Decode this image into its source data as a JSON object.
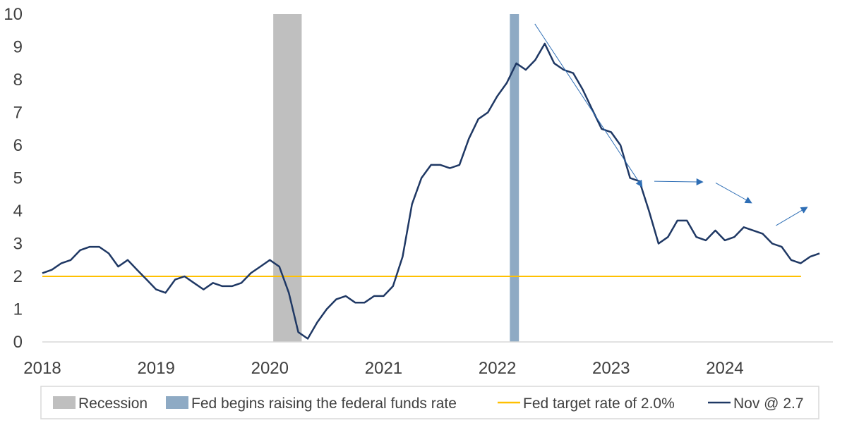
{
  "chart_data": {
    "type": "line",
    "title": "",
    "xlabel": "",
    "ylabel": "",
    "ylim": [
      0,
      10
    ],
    "yticks": [
      0,
      1,
      2,
      3,
      4,
      5,
      6,
      7,
      8,
      9,
      10
    ],
    "xlim": [
      2018.0,
      2024.95
    ],
    "xticks": [
      "2018",
      "2019",
      "2020",
      "2021",
      "2022",
      "2023",
      "2024"
    ],
    "grid": false,
    "legend_position": "bottom",
    "colors": {
      "line": "#1f3864",
      "target": "#ffc000",
      "recession": "#bfbfbf",
      "fed": "#8eaac4",
      "arrow": "#2e6eb5",
      "axis": "#d9d9d9",
      "text": "#404040"
    },
    "recession_band": {
      "x_start": 2020.03,
      "x_end": 2020.28
    },
    "fed_band": {
      "x_start": 2022.11,
      "x_end": 2022.19
    },
    "target_rate": {
      "value": 2.0,
      "x_start": 2018.0,
      "x_end": 2024.67
    },
    "series": [
      {
        "name": "Nov @ 2.7",
        "x": [
          2018.0,
          2018.083,
          2018.167,
          2018.25,
          2018.333,
          2018.417,
          2018.5,
          2018.583,
          2018.667,
          2018.75,
          2018.833,
          2018.917,
          2019.0,
          2019.083,
          2019.167,
          2019.25,
          2019.333,
          2019.417,
          2019.5,
          2019.583,
          2019.667,
          2019.75,
          2019.833,
          2019.917,
          2020.0,
          2020.083,
          2020.167,
          2020.25,
          2020.333,
          2020.417,
          2020.5,
          2020.583,
          2020.667,
          2020.75,
          2020.833,
          2020.917,
          2021.0,
          2021.083,
          2021.167,
          2021.25,
          2021.333,
          2021.417,
          2021.5,
          2021.583,
          2021.667,
          2021.75,
          2021.833,
          2021.917,
          2022.0,
          2022.083,
          2022.167,
          2022.25,
          2022.333,
          2022.417,
          2022.5,
          2022.583,
          2022.667,
          2022.75,
          2022.833,
          2022.917,
          2023.0,
          2023.083,
          2023.167,
          2023.25,
          2023.333,
          2023.417,
          2023.5,
          2023.583,
          2023.667,
          2023.75,
          2023.833,
          2023.917,
          2024.0,
          2024.083,
          2024.167,
          2024.25,
          2024.333,
          2024.417,
          2024.5,
          2024.583,
          2024.667,
          2024.75,
          2024.833
        ],
        "values": [
          2.1,
          2.2,
          2.4,
          2.5,
          2.8,
          2.9,
          2.9,
          2.7,
          2.3,
          2.5,
          2.2,
          1.9,
          1.6,
          1.5,
          1.9,
          2.0,
          1.8,
          1.6,
          1.8,
          1.7,
          1.7,
          1.8,
          2.1,
          2.3,
          2.5,
          2.3,
          1.5,
          0.3,
          0.1,
          0.6,
          1.0,
          1.3,
          1.4,
          1.2,
          1.2,
          1.4,
          1.4,
          1.7,
          2.6,
          4.2,
          5.0,
          5.4,
          5.4,
          5.3,
          5.4,
          6.2,
          6.8,
          7.0,
          7.5,
          7.9,
          8.5,
          8.3,
          8.6,
          9.1,
          8.5,
          8.3,
          8.2,
          7.7,
          7.1,
          6.5,
          6.4,
          6.0,
          5.0,
          4.9,
          4.0,
          3.0,
          3.2,
          3.7,
          3.7,
          3.2,
          3.1,
          3.4,
          3.1,
          3.2,
          3.5,
          3.4,
          3.3,
          3.0,
          2.9,
          2.5,
          2.4,
          2.6,
          2.7
        ]
      }
    ],
    "trend_arrows": [
      {
        "from": [
          2022.33,
          9.7
        ],
        "to": [
          2023.27,
          4.75
        ]
      },
      {
        "from": [
          2023.38,
          4.9
        ],
        "to": [
          2023.8,
          4.88
        ]
      },
      {
        "from": [
          2023.92,
          4.85
        ],
        "to": [
          2024.23,
          4.25
        ]
      },
      {
        "from": [
          2024.45,
          3.55
        ],
        "to": [
          2024.72,
          4.1
        ]
      }
    ],
    "legend": [
      {
        "label": "Recession",
        "kind": "box",
        "color_key": "recession"
      },
      {
        "label": "Fed begins raising the federal funds rate",
        "kind": "box",
        "color_key": "fed"
      },
      {
        "label": "Fed target rate of 2.0%",
        "kind": "line",
        "color_key": "target"
      },
      {
        "label": "Nov @ 2.7",
        "kind": "line",
        "color_key": "line"
      }
    ]
  }
}
